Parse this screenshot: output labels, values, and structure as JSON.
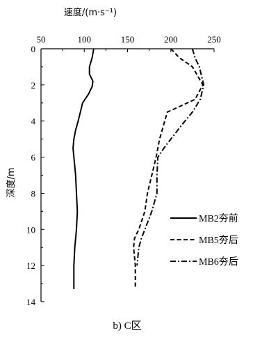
{
  "chart_data": {
    "type": "line",
    "orientation": "depth-profile",
    "xlabel": "速度/(m·s⁻¹)",
    "ylabel": "深度/m",
    "caption": "b) C区",
    "xlim": [
      50,
      250
    ],
    "ylim": [
      0,
      14
    ],
    "y_inverted": true,
    "x_axis_position": "top",
    "xticks": [
      50,
      100,
      150,
      200,
      250
    ],
    "yticks": [
      0,
      2,
      4,
      6,
      8,
      10,
      12,
      14
    ],
    "grid": false,
    "legend_position": "right",
    "series": [
      {
        "name": "MB2夯前",
        "style": "solid",
        "x": [
          111,
          109,
          106,
          106,
          110,
          109,
          105,
          98,
          93,
          90,
          88,
          87,
          88,
          90,
          91,
          92,
          91,
          90,
          89,
          88,
          88,
          88
        ],
        "y": [
          0,
          0.5,
          1,
          1.4,
          1.8,
          2.1,
          2.5,
          3,
          4,
          4.5,
          5,
          5.5,
          6,
          7,
          8,
          9,
          10,
          10.5,
          11,
          12,
          12.5,
          13.3
        ]
      },
      {
        "name": "MB5夯后",
        "style": "dashed",
        "x": [
          200,
          210,
          225,
          237,
          228,
          210,
          196,
          193,
          190,
          187,
          183,
          178,
          173,
          170,
          163,
          158,
          157,
          158,
          159,
          159
        ],
        "y": [
          0,
          0.5,
          1,
          2,
          2.8,
          3.2,
          3.5,
          4,
          4.5,
          5,
          6,
          7,
          8,
          9,
          10,
          10.5,
          11,
          11.5,
          12,
          13.3
        ]
      },
      {
        "name": "MB6夯后",
        "style": "dash-dot",
        "x": [
          225,
          228,
          233,
          238,
          234,
          225,
          213,
          200,
          192,
          185,
          184,
          184,
          178,
          170,
          166,
          163,
          161
        ],
        "y": [
          0,
          0.5,
          1,
          2,
          2.8,
          3.5,
          4.2,
          5,
          5.5,
          6,
          7,
          8,
          9,
          10,
          10.5,
          11,
          12
        ]
      }
    ]
  }
}
